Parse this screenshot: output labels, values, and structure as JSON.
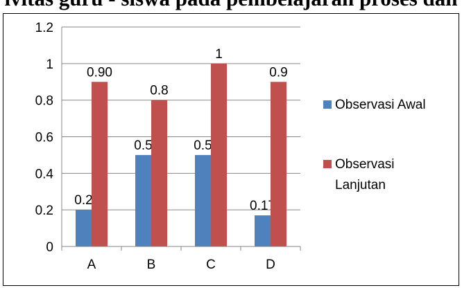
{
  "page": {
    "heading_fragment": "ivitas guru - siswa pada pembelajaran proses dan"
  },
  "chart_data": {
    "type": "bar",
    "title": "",
    "xlabel": "",
    "ylabel": "",
    "categories": [
      "A",
      "B",
      "C",
      "D"
    ],
    "ylim": [
      0,
      1.2
    ],
    "yticks": [
      0,
      0.2,
      0.4,
      0.6,
      0.8,
      1,
      1.2
    ],
    "ytick_labels": [
      "0",
      "0.2",
      "0.4",
      "0.6",
      "0.8",
      "1",
      "1.2"
    ],
    "grid": true,
    "legend_position": "right",
    "series": [
      {
        "name": "Observasi Awal",
        "legend_lines": [
          "Observasi Awal"
        ],
        "color": "#4F81BD",
        "values": [
          0.2,
          0.5,
          0.5,
          0.17
        ],
        "labels": [
          "0.2",
          "0.5",
          "0.5",
          "0.17"
        ]
      },
      {
        "name": "Observasi Lanjutan",
        "legend_lines": [
          "Observasi",
          "Lanjutan"
        ],
        "color": "#C0504D",
        "values": [
          0.9,
          0.8,
          1.0,
          0.9
        ],
        "labels": [
          "0.90",
          "0.8",
          "1",
          "0.9"
        ]
      }
    ]
  }
}
